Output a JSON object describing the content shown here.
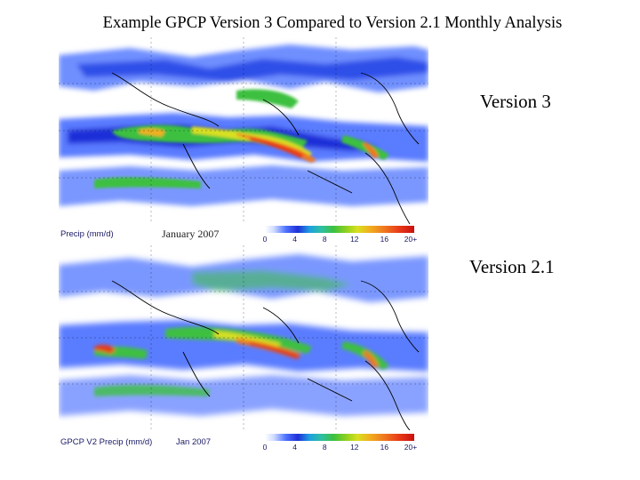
{
  "title": "Example GPCP Version 3 Compared to Version 2.1 Monthly Analysis",
  "panels": [
    {
      "label": "Version 3",
      "caption_left": "Precip (mm/d)",
      "caption_date": "January 2007",
      "colorbar_ticks": [
        "0",
        "4",
        "8",
        "12",
        "16",
        "20+"
      ]
    },
    {
      "label": "Version 2.1",
      "caption_left": "GPCP V2 Precip (mm/d)",
      "caption_date": "Jan 2007",
      "colorbar_ticks": [
        "0",
        "4",
        "8",
        "12",
        "16",
        "20+"
      ]
    }
  ],
  "colors": {
    "background": "#ffffff",
    "low_precip": "#4f74ff",
    "mid_precip": "#3cc040",
    "high_precip": "#e83a18",
    "land_outline": "#000000"
  },
  "map": {
    "projection": "equirectangular",
    "variable": "precipitation",
    "units": "mm/d",
    "colorbar_range": [
      0,
      20
    ]
  }
}
